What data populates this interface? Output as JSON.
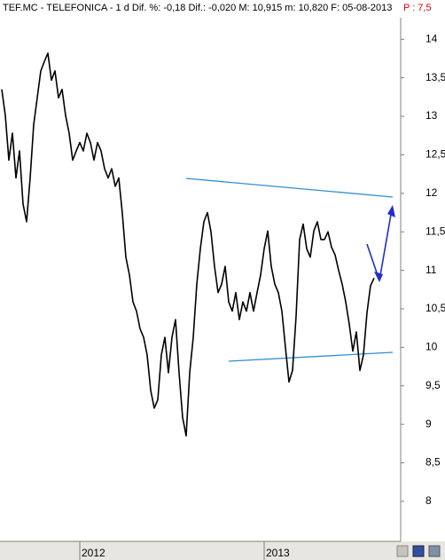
{
  "chart_data": {
    "type": "line",
    "title": "TEF.MC - TELEFONICA - 1 d Dif. %: -0,18 Dif.: -0,020 M: 10,915 m: 10,820 F: 05-08-2013",
    "price_label": "P : 7,5",
    "categories": [
      null,
      null,
      null,
      null,
      null,
      null,
      null,
      null,
      null,
      null,
      null,
      null,
      null,
      null,
      null,
      null,
      null,
      null,
      null,
      null,
      null,
      null,
      "2012",
      null,
      null,
      null,
      null,
      null,
      null,
      null,
      null,
      null,
      null,
      null,
      null,
      null,
      null,
      null,
      null,
      null,
      null,
      null,
      null,
      null,
      null,
      null,
      null,
      null,
      null,
      null,
      null,
      null,
      null,
      null,
      null,
      null,
      null,
      null,
      null,
      null,
      null,
      null,
      null,
      null,
      null,
      null,
      null,
      null,
      null,
      null,
      null,
      null,
      null,
      null,
      "2013",
      null,
      null,
      null,
      null,
      null,
      null,
      null,
      null,
      null,
      null,
      null,
      null,
      null,
      null,
      null,
      null,
      null,
      null,
      null,
      null,
      null,
      null,
      null,
      null,
      null,
      null,
      null,
      null,
      null,
      null,
      null
    ],
    "values": [
      13.35,
      13.01,
      12.43,
      12.78,
      12.2,
      12.55,
      11.86,
      11.63,
      12.2,
      12.89,
      13.24,
      13.59,
      13.71,
      13.82,
      13.47,
      13.59,
      13.24,
      13.35,
      13.01,
      12.78,
      12.43,
      12.55,
      12.66,
      12.55,
      12.78,
      12.66,
      12.43,
      12.66,
      12.55,
      12.32,
      12.2,
      12.32,
      12.09,
      12.2,
      11.74,
      11.17,
      10.94,
      10.59,
      10.47,
      10.24,
      10.13,
      9.9,
      9.44,
      9.21,
      9.32,
      9.9,
      10.13,
      9.67,
      10.13,
      10.36,
      9.67,
      9.09,
      8.85,
      9.67,
      10.13,
      10.82,
      11.28,
      11.63,
      11.75,
      11.5,
      11.05,
      10.71,
      10.82,
      11.05,
      10.59,
      10.47,
      10.71,
      10.36,
      10.59,
      10.47,
      10.71,
      10.47,
      10.71,
      10.94,
      11.28,
      11.51,
      11.05,
      10.82,
      10.71,
      10.47,
      10.0,
      9.55,
      9.7,
      10.4,
      11.4,
      11.6,
      11.28,
      11.17,
      11.51,
      11.63,
      11.4,
      11.4,
      11.5,
      11.3,
      11.2,
      11.0,
      10.82,
      10.59,
      10.3,
      9.95,
      10.2,
      9.7,
      9.9,
      10.45,
      10.8,
      10.9
    ],
    "color": "#000000",
    "ylim": [
      7.48,
      14.28
    ],
    "yticks": [
      8,
      {
        "value": 8.5,
        "label": "8,5"
      },
      9,
      {
        "value": 9.5,
        "label": "9,5"
      },
      10,
      {
        "value": 10.5,
        "label": "10,5"
      },
      11,
      {
        "value": 11.5,
        "label": "11,5"
      },
      12,
      {
        "value": 12.5,
        "label": "12,5"
      },
      13,
      {
        "value": 13.5,
        "label": "13,5"
      },
      14
    ],
    "grid": false
  }
}
